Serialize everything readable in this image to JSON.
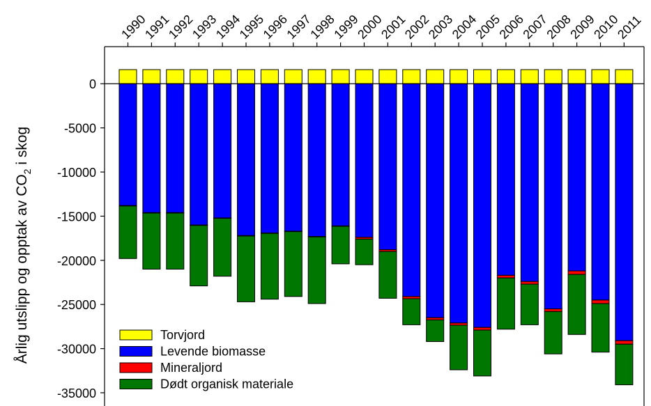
{
  "chart_data": {
    "type": "bar",
    "stacked": true,
    "title": "",
    "xlabel": "",
    "ylabel": {
      "prefix": "Årlig utslipp og opptak av CO",
      "subscript": "2",
      "suffix": " i skog"
    },
    "categories": [
      "1990",
      "1991",
      "1992",
      "1993",
      "1994",
      "1995",
      "1996",
      "1997",
      "1998",
      "1999",
      "2000",
      "2001",
      "2002",
      "2003",
      "2004",
      "2005",
      "2006",
      "2007",
      "2008",
      "2009",
      "2010",
      "2011"
    ],
    "ylim": [
      -36500,
      4200
    ],
    "yticks": [
      0,
      -5000,
      -10000,
      -15000,
      -20000,
      -25000,
      -30000,
      -35000
    ],
    "legend_position": "bottom-left",
    "series": [
      {
        "name": "Torvjord",
        "color": "#ffff00",
        "values": [
          1600,
          1600,
          1600,
          1600,
          1600,
          1600,
          1600,
          1600,
          1600,
          1600,
          1600,
          1600,
          1600,
          1600,
          1600,
          1600,
          1600,
          1600,
          1600,
          1600,
          1600,
          1600
        ]
      },
      {
        "name": "Levende biomasse",
        "color": "#0000ff",
        "values": [
          -13800,
          -14600,
          -14600,
          -16000,
          -15200,
          -17200,
          -16900,
          -16700,
          -17300,
          -16100,
          -17400,
          -18800,
          -24100,
          -26500,
          -27100,
          -27600,
          -21700,
          -22400,
          -25500,
          -21200,
          -24500,
          -29100
        ]
      },
      {
        "name": "Mineraljord",
        "color": "#ff0000",
        "values": [
          -50,
          -50,
          -50,
          -50,
          -50,
          -50,
          -50,
          -50,
          -50,
          -50,
          -200,
          -200,
          -250,
          -250,
          -250,
          -300,
          -300,
          -300,
          -300,
          -400,
          -400,
          -400
        ]
      },
      {
        "name": "Dødt organisk materiale",
        "color": "#007700",
        "values": [
          -5950,
          -6350,
          -6350,
          -6850,
          -6550,
          -7450,
          -7450,
          -7350,
          -7550,
          -4250,
          -2900,
          -5300,
          -2950,
          -2450,
          -5050,
          -5200,
          -5800,
          -4600,
          -4800,
          -6800,
          -5500,
          -4600
        ]
      }
    ]
  }
}
